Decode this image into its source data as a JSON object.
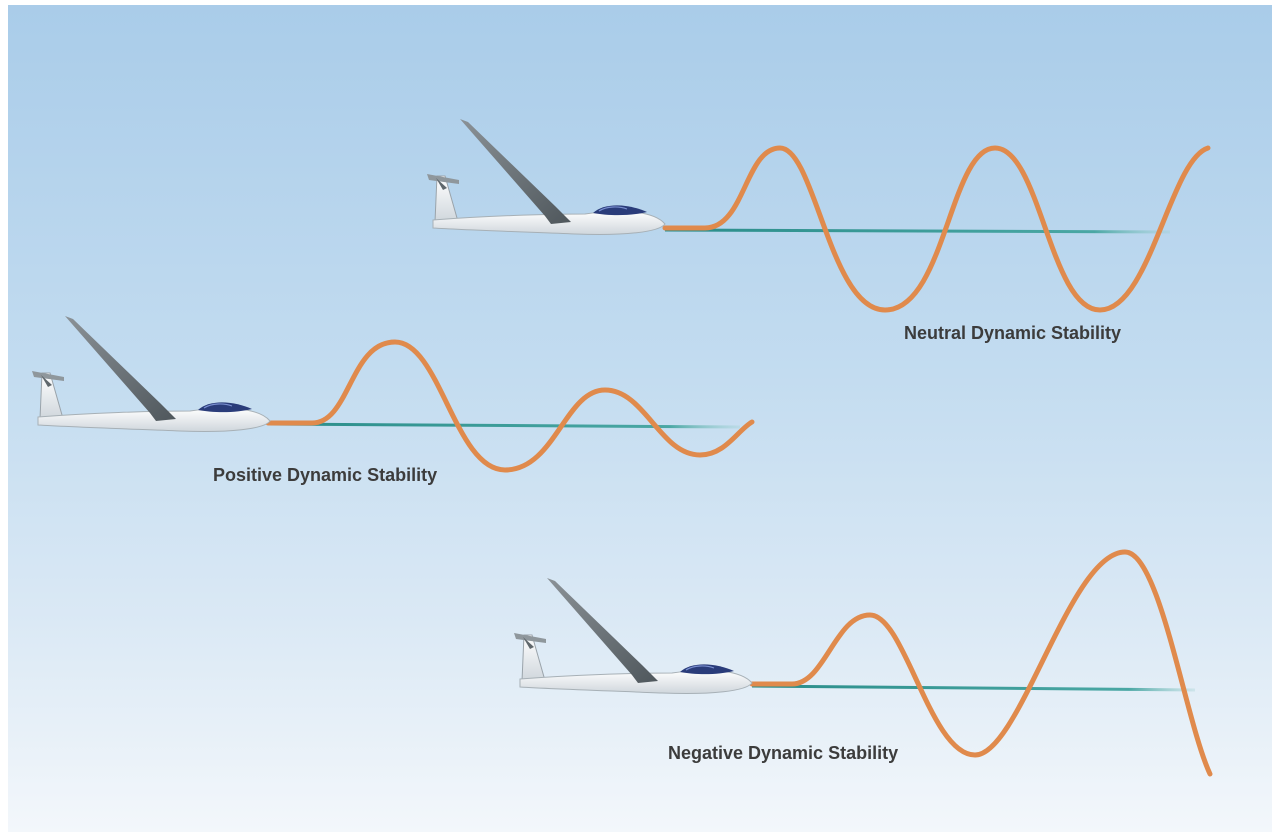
{
  "diagram": {
    "neutral": {
      "label": "Neutral Dynamic Stability"
    },
    "positive": {
      "label": "Positive Dynamic Stability"
    },
    "negative": {
      "label": "Negative Dynamic Stability"
    }
  },
  "colors": {
    "sky_top": "#a8cbe8",
    "sky_bottom": "#f2f7fb",
    "oscillation": "#e08a4c",
    "reference_line": "#2c8f8c",
    "glider_body": "#ffffff",
    "wing": "#6b7378",
    "canopy": "#2a3c7a",
    "caption_text": "#3c3c3c"
  }
}
